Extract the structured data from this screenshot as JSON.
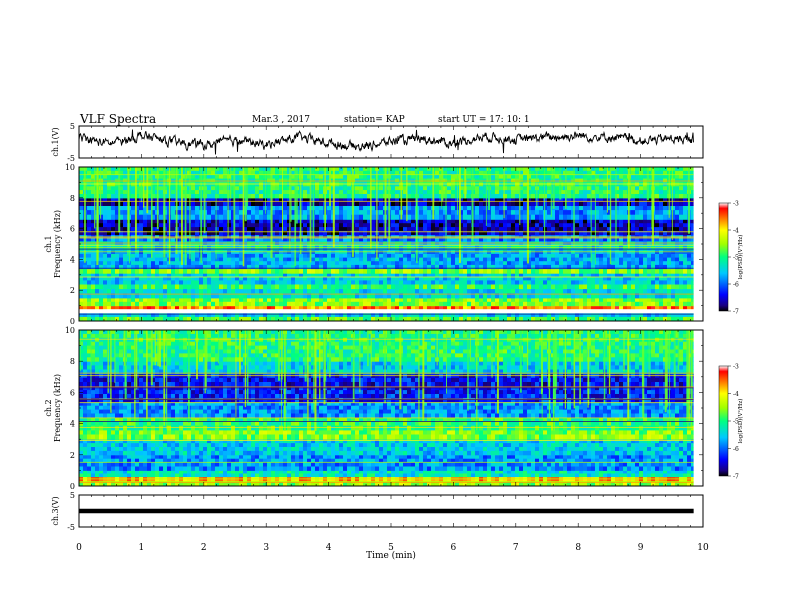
{
  "header": {
    "title": "VLF Spectra",
    "date": "Mar.3 , 2017",
    "station": "station= KAP",
    "start": "start UT = 17: 10: 1"
  },
  "chart_data": [
    {
      "type": "line",
      "panel": "ch1-waveform",
      "ylabel": "ch.1(V)",
      "ylim": [
        -5,
        5
      ],
      "yticks": [
        "5",
        "-5"
      ],
      "x": [
        0,
        0.5,
        1,
        1.5,
        2,
        2.5,
        3,
        3.5,
        4,
        4.5,
        5,
        5.5,
        6,
        6.5,
        7,
        7.5,
        8,
        8.5,
        9,
        9.5,
        9.85
      ],
      "values": [
        1.2,
        -0.5,
        2.0,
        0.0,
        -1.0,
        0.5,
        -0.8,
        1.5,
        -0.3,
        -1.5,
        0.2,
        1.0,
        -0.5,
        1.8,
        0.8,
        1.5,
        2.0,
        1.5,
        0.5,
        1.0,
        0.5
      ]
    },
    {
      "type": "heatmap",
      "panel": "ch1-spectrogram",
      "ylabel": "ch.1\nFrequency (kHz)",
      "ylim": [
        0,
        10
      ],
      "yticks": [
        "0",
        "2",
        "4",
        "6",
        "8",
        "10"
      ],
      "colorbar": {
        "label": "log(PSD)(V²/Hz)",
        "range": [
          -7,
          -3
        ],
        "ticks": [
          "-3",
          "-4",
          "-5",
          "-6",
          "-7"
        ]
      },
      "x_range_min": [
        0,
        9.85
      ],
      "bands_khz": [
        {
          "from": 0.0,
          "to": 0.3,
          "level": -4.8
        },
        {
          "from": 0.3,
          "to": 0.5,
          "level": -5.5
        },
        {
          "from": 0.8,
          "to": 1.0,
          "level": -3.6
        },
        {
          "from": 1.0,
          "to": 1.5,
          "level": -4.6
        },
        {
          "from": 1.5,
          "to": 2.1,
          "level": -5.4
        },
        {
          "from": 2.1,
          "to": 2.4,
          "level": -4.9
        },
        {
          "from": 2.4,
          "to": 3.1,
          "level": -5.5
        },
        {
          "from": 3.1,
          "to": 3.4,
          "level": -4.6
        },
        {
          "from": 3.4,
          "to": 4.6,
          "level": -5.7
        },
        {
          "from": 4.6,
          "to": 5.2,
          "level": -5.4
        },
        {
          "from": 5.2,
          "to": 5.6,
          "level": -5.9
        },
        {
          "from": 5.6,
          "to": 6.6,
          "level": -6.6
        },
        {
          "from": 6.6,
          "to": 7.5,
          "level": -5.8
        },
        {
          "from": 7.5,
          "to": 8.0,
          "level": -6.6
        },
        {
          "from": 8.0,
          "to": 10.0,
          "level": -5.0
        }
      ]
    },
    {
      "type": "heatmap",
      "panel": "ch2-spectrogram",
      "ylabel": "ch.2\nFrequency (kHz)",
      "ylim": [
        0,
        10
      ],
      "yticks": [
        "0",
        "2",
        "4",
        "6",
        "8",
        "10"
      ],
      "colorbar": {
        "label": "log(PSD)(V²/Hz)",
        "range": [
          -7,
          -3
        ],
        "ticks": [
          "-3",
          "-4",
          "-5",
          "-6",
          "-7"
        ]
      },
      "x_range_min": [
        0,
        9.85
      ],
      "bands_khz": [
        {
          "from": 0.0,
          "to": 0.3,
          "level": -4.5
        },
        {
          "from": 0.3,
          "to": 0.6,
          "level": -3.8
        },
        {
          "from": 0.6,
          "to": 1.0,
          "level": -5.3
        },
        {
          "from": 1.0,
          "to": 2.0,
          "level": -5.8
        },
        {
          "from": 2.0,
          "to": 3.0,
          "level": -5.5
        },
        {
          "from": 3.0,
          "to": 3.6,
          "level": -4.6
        },
        {
          "from": 3.6,
          "to": 4.4,
          "level": -4.9
        },
        {
          "from": 4.4,
          "to": 5.4,
          "level": -5.8
        },
        {
          "from": 5.4,
          "to": 6.4,
          "level": -6.3
        },
        {
          "from": 6.4,
          "to": 7.2,
          "level": -6.4
        },
        {
          "from": 7.2,
          "to": 8.0,
          "level": -5.5
        },
        {
          "from": 8.0,
          "to": 10.0,
          "level": -5.0
        }
      ]
    },
    {
      "type": "line",
      "panel": "ch3-waveform",
      "ylabel": "ch.3(V)",
      "ylim": [
        -5,
        5
      ],
      "yticks": [
        "5",
        "-5"
      ],
      "x": [
        0,
        9.85
      ],
      "values": [
        0,
        0
      ]
    }
  ],
  "xaxis": {
    "label": "Time (min)",
    "ticks": [
      "0",
      "1",
      "2",
      "3",
      "4",
      "5",
      "6",
      "7",
      "8",
      "9",
      "10"
    ],
    "range": [
      0,
      10
    ]
  }
}
